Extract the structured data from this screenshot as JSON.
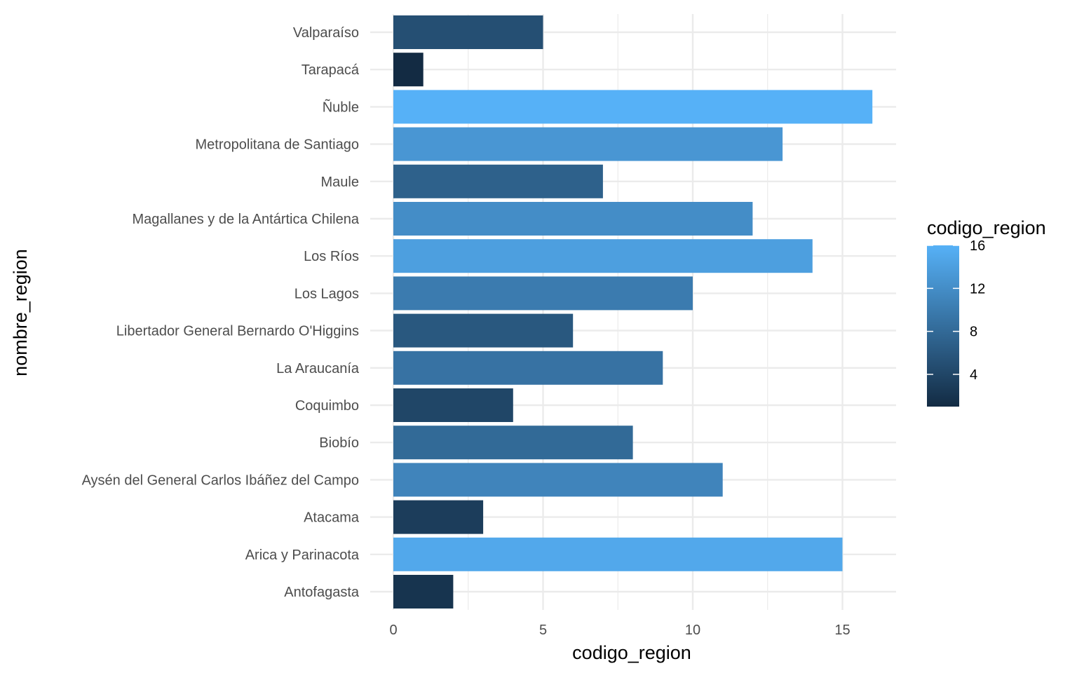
{
  "chart_data": {
    "type": "bar",
    "orientation": "horizontal",
    "categories": [
      "Valparaíso",
      "Tarapacá",
      "Ñuble",
      "Metropolitana de Santiago",
      "Maule",
      "Magallanes y de la Antártica Chilena",
      "Los Ríos",
      "Los Lagos",
      "Libertador General Bernardo O'Higgins",
      "La Araucanía",
      "Coquimbo",
      "Biobío",
      "Aysén del General Carlos Ibáñez del Campo",
      "Atacama",
      "Arica y Parinacota",
      "Antofagasta"
    ],
    "values": [
      5,
      1,
      16,
      13,
      7,
      12,
      14,
      10,
      6,
      9,
      4,
      8,
      11,
      3,
      15,
      2
    ],
    "title": "",
    "xlabel": "codigo_region",
    "ylabel": "nombre_region",
    "xlim": [
      0,
      16.8
    ],
    "xticks": [
      0,
      5,
      10,
      15
    ],
    "xtick_labels": [
      "0",
      "5",
      "10",
      "15"
    ],
    "grid": true,
    "legend": {
      "title": "codigo_region",
      "placement": "right",
      "type": "colorbar",
      "range": [
        1,
        16
      ],
      "ticks": [
        4,
        8,
        12,
        16
      ],
      "tick_labels": [
        "4",
        "8",
        "12",
        "16"
      ],
      "color_low": "#132B43",
      "color_high": "#56B1F7"
    }
  }
}
